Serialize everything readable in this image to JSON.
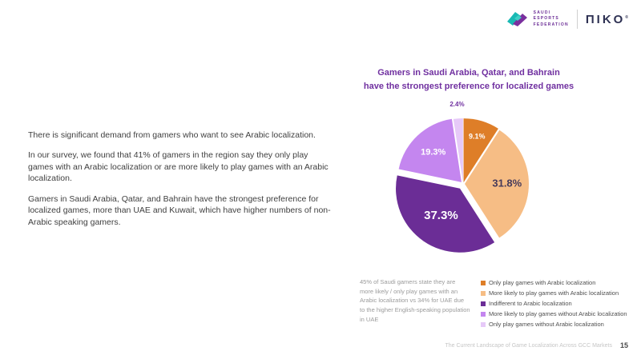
{
  "header": {
    "saudi_esports_logo": {
      "lines": [
        "SAUDI",
        "ESPORTS",
        "FEDERATION"
      ]
    },
    "niko_logo": {
      "text": "ΠIKO",
      "mark": "®"
    }
  },
  "main": {
    "paragraphs": [
      "There is significant demand from gamers who want to see Arabic localization.",
      "In our survey, we found that 41% of gamers in the region say they only play games with an Arabic localization or are more likely to play games with an Arabic localization.",
      "Gamers in Saudi Arabia, Qatar, and Bahrain have the strongest preference for localized games, more than UAE and Kuwait, which have higher numbers of non-Arabic speaking gamers."
    ]
  },
  "chart": {
    "title_lines": [
      "Gamers in Saudi Arabia, Qatar, and Bahrain",
      "have the strongest preference for localized games"
    ]
  },
  "note": {
    "text": "45% of Saudi gamers state they are more likely / only play games with an Arabic localization vs 34% for UAE due to the higher English-speaking population in UAE"
  },
  "footer": {
    "report_title": "The Current Landscape of Game Localization Across GCC Markets",
    "page_number": "15"
  },
  "colors": {
    "accent_purple": "#7030a0"
  },
  "chart_data": {
    "type": "pie",
    "title": "Gamers in Saudi Arabia, Qatar, and Bahrain have the strongest preference for localized games",
    "legend_position": "bottom-right",
    "slices": [
      {
        "label": "Only play games with Arabic localization",
        "value": 9.1,
        "color": "#de7e28",
        "label_color": "#ffffff",
        "label_r": 0.74,
        "label_size": 9,
        "explode": 2
      },
      {
        "label": "More likely to play games with Arabic localization",
        "value": 31.8,
        "color": "#f6bd85",
        "label_color": "#463a5a",
        "label_r": 0.66,
        "label_size": 13,
        "explode": 2
      },
      {
        "label": "Indifferent to Arabic localization",
        "value": 37.3,
        "color": "#6b2d96",
        "label_color": "#ffffff",
        "label_r": 0.52,
        "label_size": 15,
        "explode": 7
      },
      {
        "label": "More likely to play games without Arabic localization",
        "value": 19.3,
        "color": "#c486ef",
        "label_color": "#ffffff",
        "label_r": 0.64,
        "label_size": 11,
        "explode": 3
      },
      {
        "label": "Only play games without Arabic localization",
        "value": 2.4,
        "color": "#e6c9f8",
        "label_color": "#7030a0",
        "label_r": 1.22,
        "label_size": 8,
        "explode": 2
      }
    ]
  }
}
